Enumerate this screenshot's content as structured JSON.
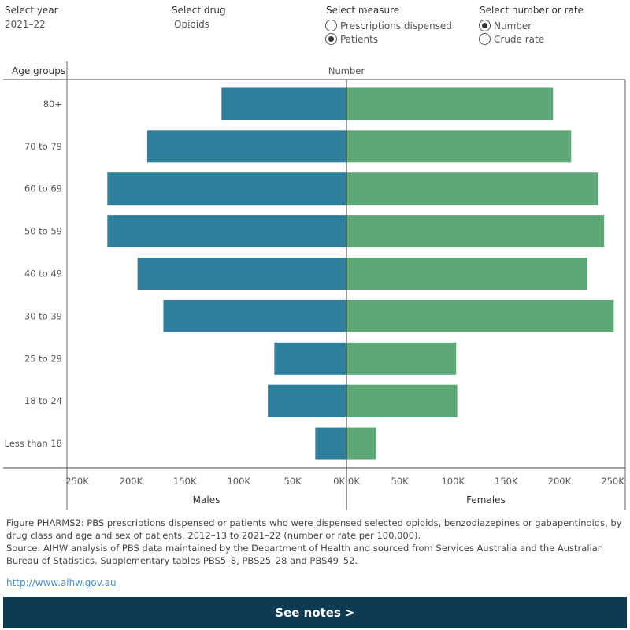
{
  "controls": {
    "year": {
      "title": "Select year",
      "value": "2021–22"
    },
    "drug": {
      "title": "Select drug",
      "value": "Opioids"
    },
    "measure": {
      "title": "Select measure",
      "options": [
        {
          "label": "Prescriptions dispensed",
          "selected": false
        },
        {
          "label": "Patients",
          "selected": true
        }
      ]
    },
    "number_rate": {
      "title": "Select number or rate",
      "options": [
        {
          "label": "Number",
          "selected": true
        },
        {
          "label": "Crude rate",
          "selected": false
        }
      ]
    }
  },
  "chart_data": {
    "type": "bar",
    "orientation": "horizontal",
    "layout": "back-to-back",
    "row_header": "Age groups",
    "value_header": "Number",
    "categories": [
      "80+",
      "70 to 79",
      "60 to 69",
      "50 to 59",
      "40 to 49",
      "30 to 39",
      "25 to 29",
      "18 to 24",
      "Less than 18"
    ],
    "series": [
      {
        "name": "Males",
        "color": "#2e7f9c",
        "values": [
          116000,
          185000,
          222000,
          222000,
          194000,
          170000,
          67000,
          73000,
          29000
        ]
      },
      {
        "name": "Females",
        "color": "#5ea878",
        "values": [
          194000,
          211000,
          236000,
          242000,
          226000,
          251000,
          103000,
          104000,
          28000
        ]
      }
    ],
    "males_axis_ticks": [
      "250K",
      "200K",
      "150K",
      "100K",
      "50K",
      "0K"
    ],
    "females_axis_ticks": [
      "0K",
      "50K",
      "100K",
      "150K",
      "200K",
      "250K"
    ],
    "xlim": [
      0,
      250000
    ],
    "grid": false
  },
  "caption": {
    "figure": "Figure PHARMS2: PBS prescriptions dispensed or patients who were dispensed selected opioids, benzodiazepines or gabapentinoids, by drug class and age and sex of patients, 2012–13 to 2021–22 (number or rate per 100,000).",
    "source": "Source: AIHW analysis of PBS data maintained by the Department of Health and sourced from Services Australia and the Australian Bureau of Statistics. Supplementary tables PBS5–8, PBS25–28 and PBS49–52."
  },
  "link_text": "http://www.aihw.gov.au",
  "notes_button": "See notes >"
}
